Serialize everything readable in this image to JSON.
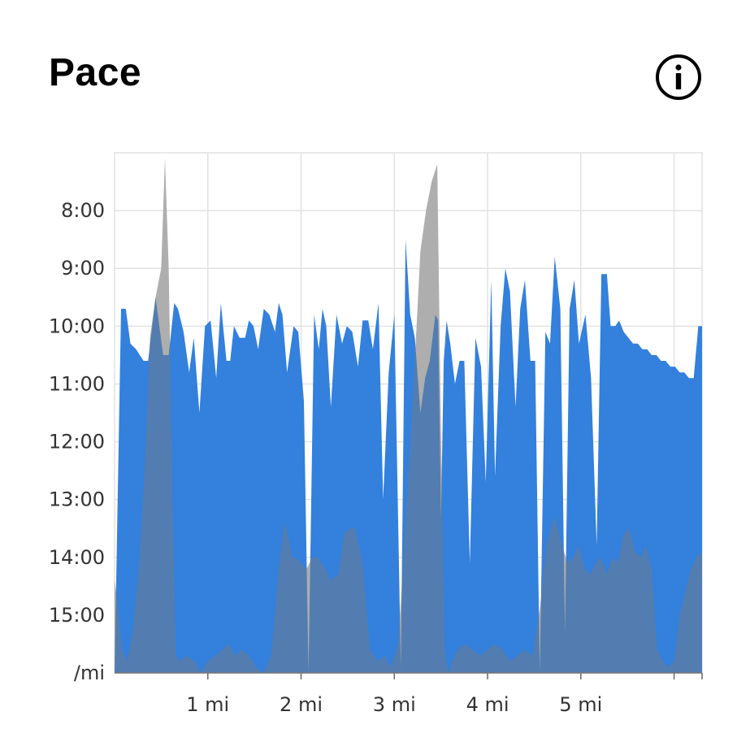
{
  "header": {
    "title": "Pace",
    "info_icon": "info-icon"
  },
  "colors": {
    "pace_fill": "#3380dd",
    "elevation_fill": "#7a7a7a",
    "grid": "#e2e2e2"
  },
  "chart_data": {
    "type": "area",
    "ylabel": "/mi",
    "y_ticks": [
      "8:00",
      "9:00",
      "10:00",
      "11:00",
      "12:00",
      "13:00",
      "14:00",
      "15:00"
    ],
    "y_tick_values": [
      8,
      9,
      10,
      11,
      12,
      13,
      14,
      15
    ],
    "ylim": [
      7,
      16
    ],
    "y_inverted": true,
    "x_ticks": [
      "1 mi",
      "2 mi",
      "3 mi",
      "4 mi",
      "5 mi"
    ],
    "x_tick_values": [
      1,
      2,
      3,
      4,
      5
    ],
    "xlim": [
      0,
      6.3
    ],
    "grid": true,
    "series": [
      {
        "kind": "pace",
        "x": [
          0.0,
          0.07,
          0.12,
          0.17,
          0.23,
          0.31,
          0.36,
          0.44,
          0.52,
          0.58,
          0.64,
          0.68,
          0.74,
          0.8,
          0.85,
          0.91,
          0.97,
          1.03,
          1.09,
          1.14,
          1.2,
          1.24,
          1.28,
          1.34,
          1.4,
          1.44,
          1.49,
          1.54,
          1.6,
          1.66,
          1.72,
          1.76,
          1.8,
          1.85,
          1.92,
          1.97,
          2.03,
          2.08,
          2.14,
          2.19,
          2.23,
          2.27,
          2.32,
          2.38,
          2.44,
          2.49,
          2.55,
          2.61,
          2.66,
          2.72,
          2.77,
          2.83,
          2.88,
          2.94,
          3.0,
          3.07,
          3.12,
          3.17,
          3.22,
          3.28,
          3.33,
          3.38,
          3.44,
          3.47,
          3.5,
          3.53,
          3.56,
          3.6,
          3.65,
          3.7,
          3.75,
          3.81,
          3.87,
          3.93,
          3.98,
          4.04,
          4.08,
          4.14,
          4.19,
          4.24,
          4.3,
          4.35,
          4.4,
          4.46,
          4.51,
          4.56,
          4.62,
          4.67,
          4.72,
          4.78,
          4.83,
          4.88,
          4.93,
          4.98,
          5.05,
          5.11,
          5.17,
          5.22,
          5.28,
          5.32,
          5.37,
          5.41,
          5.46,
          5.51,
          5.56,
          5.61,
          5.66,
          5.71,
          5.76,
          5.81,
          5.86,
          5.91,
          5.96,
          6.01,
          6.06,
          6.11,
          6.16,
          6.21,
          6.26,
          6.3
        ],
        "y": [
          16.0,
          9.7,
          9.7,
          10.3,
          10.4,
          10.6,
          10.6,
          9.5,
          10.5,
          10.5,
          9.6,
          9.7,
          10.1,
          10.8,
          10.2,
          11.5,
          10.0,
          9.9,
          10.9,
          9.6,
          10.6,
          10.6,
          10.0,
          10.2,
          10.2,
          9.9,
          10.0,
          10.4,
          9.7,
          9.8,
          10.1,
          9.6,
          9.8,
          10.8,
          10.0,
          10.1,
          11.3,
          16.0,
          9.8,
          10.4,
          9.7,
          10.0,
          11.4,
          9.8,
          10.3,
          10.0,
          10.1,
          10.7,
          9.9,
          9.9,
          10.4,
          9.6,
          13.0,
          10.8,
          9.8,
          15.9,
          8.5,
          9.8,
          10.2,
          11.5,
          10.9,
          10.6,
          9.8,
          9.9,
          13.3,
          10.6,
          9.9,
          10.3,
          11.0,
          10.6,
          10.6,
          14.1,
          10.2,
          10.7,
          12.7,
          9.2,
          12.6,
          10.0,
          9.0,
          9.4,
          11.4,
          9.7,
          9.2,
          10.6,
          10.6,
          16.0,
          10.1,
          10.3,
          8.8,
          9.7,
          15.3,
          9.7,
          9.2,
          10.3,
          9.8,
          10.9,
          13.8,
          9.1,
          9.1,
          10.0,
          10.0,
          9.9,
          10.1,
          10.2,
          10.3,
          10.3,
          10.4,
          10.4,
          10.5,
          10.5,
          10.6,
          10.6,
          10.7,
          10.7,
          10.8,
          10.8,
          10.9,
          10.9,
          10.0,
          10.0
        ]
      },
      {
        "kind": "elevation",
        "x": [
          0.0,
          0.04,
          0.08,
          0.14,
          0.2,
          0.26,
          0.32,
          0.38,
          0.44,
          0.5,
          0.54,
          0.58,
          0.62,
          0.66,
          0.7,
          0.78,
          0.86,
          0.92,
          1.0,
          1.08,
          1.16,
          1.22,
          1.3,
          1.36,
          1.44,
          1.52,
          1.6,
          1.68,
          1.76,
          1.82,
          1.86,
          1.9,
          1.94,
          2.0,
          2.06,
          2.12,
          2.18,
          2.26,
          2.32,
          2.4,
          2.46,
          2.52,
          2.58,
          2.66,
          2.74,
          2.82,
          2.9,
          2.96,
          3.04,
          3.1,
          3.16,
          3.22,
          3.28,
          3.34,
          3.4,
          3.46,
          3.5,
          3.54,
          3.58,
          3.62,
          3.68,
          3.76,
          3.84,
          3.92,
          4.0,
          4.08,
          4.16,
          4.24,
          4.32,
          4.4,
          4.48,
          4.56,
          4.64,
          4.72,
          4.8,
          4.86,
          4.92,
          4.98,
          5.04,
          5.1,
          5.16,
          5.22,
          5.28,
          5.34,
          5.4,
          5.46,
          5.52,
          5.58,
          5.64,
          5.7,
          5.76,
          5.82,
          5.88,
          5.94,
          6.0,
          6.06,
          6.12,
          6.18,
          6.24,
          6.3
        ],
        "y": [
          14.4,
          14.9,
          15.6,
          15.8,
          15.2,
          14.2,
          12.6,
          10.2,
          9.5,
          9.0,
          7.1,
          9.0,
          13.0,
          15.7,
          15.8,
          15.7,
          15.8,
          16.0,
          15.8,
          15.7,
          15.6,
          15.5,
          15.7,
          15.6,
          15.7,
          15.9,
          16.0,
          15.7,
          14.2,
          13.4,
          13.6,
          14.0,
          14.0,
          14.1,
          14.2,
          14.0,
          14.0,
          14.2,
          14.4,
          14.3,
          13.6,
          13.5,
          13.5,
          14.1,
          15.6,
          15.8,
          15.7,
          15.9,
          15.5,
          14.0,
          12.3,
          10.6,
          8.7,
          8.0,
          7.5,
          7.2,
          11.9,
          15.6,
          16.0,
          15.8,
          15.6,
          15.5,
          15.6,
          15.7,
          15.6,
          15.5,
          15.6,
          15.8,
          15.7,
          15.6,
          15.7,
          14.9,
          13.7,
          13.3,
          13.8,
          14.1,
          14.0,
          13.8,
          14.2,
          14.3,
          14.1,
          14.0,
          14.3,
          14.0,
          14.1,
          13.6,
          13.5,
          13.9,
          14.0,
          13.8,
          14.2,
          15.6,
          15.8,
          15.9,
          15.8,
          15.0,
          14.6,
          14.2,
          14.0,
          13.9
        ]
      }
    ]
  }
}
